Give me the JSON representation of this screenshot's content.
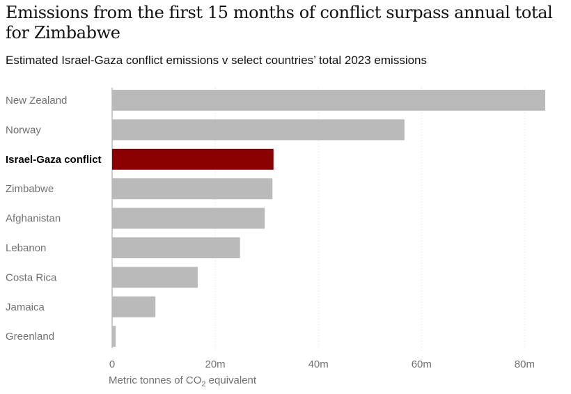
{
  "title": "Emissions from the first 15 months of conflict surpass annual total for Zimbabwe",
  "subtitle": "Estimated Israel-Gaza conflict emissions v select countries’ total 2023 emissions",
  "colors": {
    "bar": "#bababa",
    "highlight": "#8b0000"
  },
  "chart_data": {
    "type": "bar",
    "orientation": "horizontal",
    "categories": [
      "New Zealand",
      "Norway",
      "Israel-Gaza conflict",
      "Zimbabwe",
      "Afghanistan",
      "Lebanon",
      "Costa Rica",
      "Jamaica",
      "Greenland"
    ],
    "values": [
      84,
      56.7,
      31.3,
      31.1,
      29.6,
      24.8,
      16.6,
      8.4,
      0.7
    ],
    "highlight": "Israel-Gaza conflict",
    "xlim": [
      0,
      84
    ],
    "xticks": [
      0,
      20,
      40,
      60,
      80
    ],
    "xtick_labels": [
      "0",
      "20m",
      "40m",
      "60m",
      "80m"
    ],
    "xlabel": {
      "prefix": "Metric tonnes of CO",
      "subscript": "2",
      "suffix": " equivalent"
    },
    "grid": true
  }
}
